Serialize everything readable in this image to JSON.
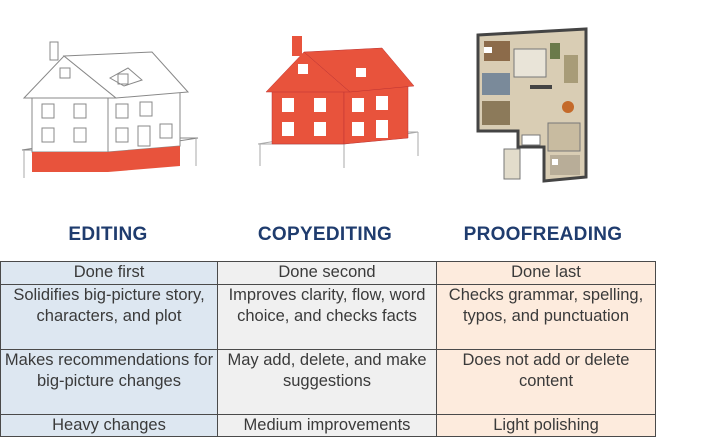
{
  "columns": [
    {
      "heading": "EDITING"
    },
    {
      "heading": "COPYEDITING"
    },
    {
      "heading": "PROOFREADING"
    }
  ],
  "rows": [
    [
      "Done first",
      "Done second",
      "Done last"
    ],
    [
      "Solidifies big-picture story, characters, and plot",
      "Improves clarity, flow, word choice, and checks facts",
      "Checks grammar, spelling, typos, and punctuation"
    ],
    [
      "Makes recommendations for big-picture changes",
      "May add, delete, and make suggestions",
      "Does not add or delete content"
    ],
    [
      "Heavy changes",
      "Medium improvements",
      "Light polishing"
    ]
  ],
  "colors": {
    "heading": "#1f3c6e",
    "accent_red": "#e8533c",
    "col1_bg": "#dde7f1",
    "col2_bg": "#f0f0f0",
    "col3_bg": "#fdebdd"
  }
}
